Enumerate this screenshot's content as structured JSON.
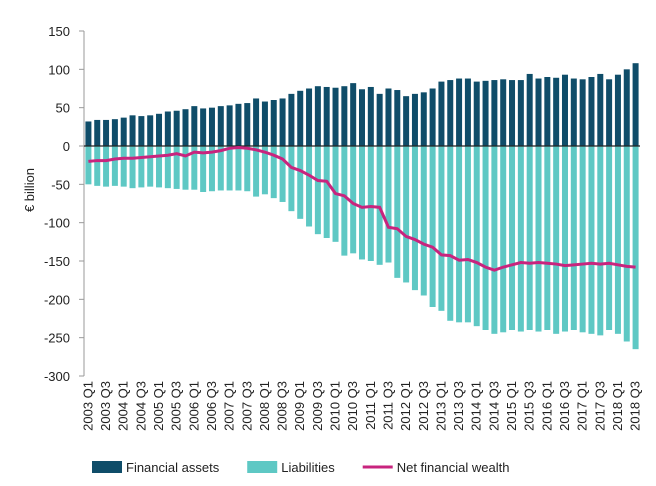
{
  "chart_data": {
    "type": "bar",
    "y_label": "€ billion",
    "categories": [
      "2003 Q1",
      null,
      "2003 Q3",
      null,
      "2004 Q1",
      null,
      "2004 Q3",
      null,
      "2005 Q1",
      null,
      "2005 Q3",
      null,
      "2006 Q1",
      null,
      "2006 Q3",
      null,
      "2007 Q1",
      null,
      "2007 Q3",
      null,
      "2008 Q1",
      null,
      "2008 Q3",
      null,
      "2009 Q1",
      null,
      "2009 Q3",
      null,
      "2010 Q1",
      null,
      "2010 Q3",
      null,
      "2011 Q1",
      null,
      "2011 Q3",
      null,
      "2012 Q1",
      null,
      "2012 Q3",
      null,
      "2013 Q1",
      null,
      "2013 Q3",
      null,
      "2014 Q1",
      null,
      "2014 Q3",
      null,
      "2015 Q1",
      null,
      "2015 Q3",
      null,
      "2016 Q1",
      null,
      "2016 Q3",
      null,
      "2017 Q1",
      null,
      "2017 Q3",
      null,
      "2018 Q1",
      null,
      "2018 Q3"
    ],
    "series": [
      {
        "name": "Financial assets",
        "color": "#0f4d69",
        "values": [
          32,
          34,
          34,
          35,
          37,
          40,
          39,
          40,
          42,
          45,
          46,
          48,
          52,
          49,
          50,
          52,
          53,
          55,
          56,
          62,
          58,
          60,
          62,
          68,
          72,
          75,
          78,
          77,
          76,
          78,
          82,
          74,
          77,
          68,
          75,
          73,
          65,
          68,
          70,
          75,
          84,
          86,
          88,
          88,
          84,
          85,
          86,
          87,
          86,
          86,
          94,
          88,
          90,
          89,
          93,
          88,
          87,
          90,
          94,
          87,
          93,
          100,
          108
        ]
      },
      {
        "name": "Liabilities",
        "color": "#5ec8c4",
        "values": [
          -50,
          -52,
          -53,
          -52,
          -53,
          -55,
          -54,
          -53,
          -54,
          -55,
          -56,
          -57,
          -57,
          -60,
          -59,
          -58,
          -58,
          -58,
          -59,
          -66,
          -63,
          -68,
          -73,
          -85,
          -95,
          -105,
          -115,
          -120,
          -125,
          -143,
          -140,
          -148,
          -150,
          -155,
          -152,
          -172,
          -178,
          -188,
          -195,
          -210,
          -215,
          -228,
          -230,
          -230,
          -235,
          -240,
          -245,
          -243,
          -240,
          -242,
          -240,
          -242,
          -240,
          -245,
          -242,
          -240,
          -243,
          -245,
          -247,
          -240,
          -245,
          -255,
          -265
        ]
      },
      {
        "name": "Net financial wealth",
        "color": "#c8247e",
        "line": true,
        "values": [
          -20,
          -19,
          -19,
          -17,
          -16,
          -16,
          -15,
          -14,
          -13,
          -12,
          -10,
          -13,
          -8,
          -9,
          -8,
          -6,
          -3,
          -2,
          -3,
          -5,
          -8,
          -12,
          -17,
          -28,
          -32,
          -38,
          -45,
          -46,
          -62,
          -65,
          -75,
          -80,
          -79,
          -80,
          -106,
          -108,
          -118,
          -122,
          -128,
          -132,
          -142,
          -143,
          -149,
          -148,
          -152,
          -158,
          -162,
          -158,
          -155,
          -152,
          -153,
          -152,
          -153,
          -154,
          -156,
          -155,
          -154,
          -153,
          -154,
          -153,
          -155,
          -157,
          -158
        ]
      }
    ],
    "ylim": [
      -300,
      150
    ],
    "yticks": [
      -300,
      -250,
      -200,
      -150,
      -100,
      -50,
      0,
      50,
      100,
      150
    ]
  }
}
